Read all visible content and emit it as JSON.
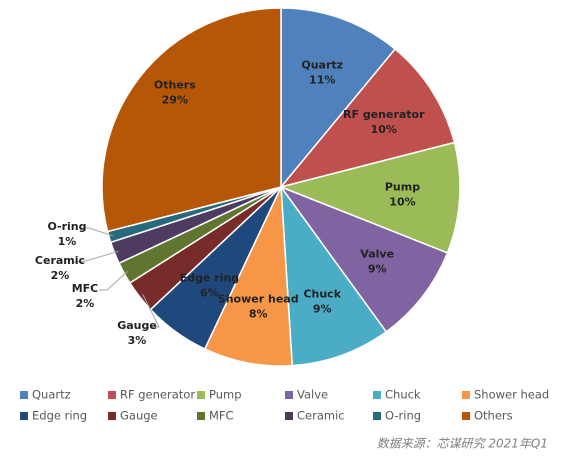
{
  "chart_data": {
    "type": "pie",
    "categories": [
      "Quartz",
      "RF generator",
      "Pump",
      "Valve",
      "Chuck",
      "Shower head",
      "Edge ring",
      "Gauge",
      "MFC",
      "Ceramic",
      "O-ring",
      "Others"
    ],
    "values": [
      11,
      10,
      10,
      9,
      9,
      8,
      6,
      3,
      2,
      2,
      1,
      29
    ],
    "value_labels": [
      "11%",
      "10%",
      "10%",
      "9%",
      "9%",
      "8%",
      "6%",
      "3%",
      "2%",
      "2%",
      "1%",
      "29%"
    ],
    "colors": [
      "#4f81bd",
      "#c0504d",
      "#9bbb59",
      "#8064a2",
      "#4bacc6",
      "#f79646",
      "#1f497d",
      "#772c2a",
      "#5f7530",
      "#4d3b62",
      "#276a7c",
      "#b65708"
    ],
    "source": "数据来源：芯谋研究 2021年Q1"
  }
}
